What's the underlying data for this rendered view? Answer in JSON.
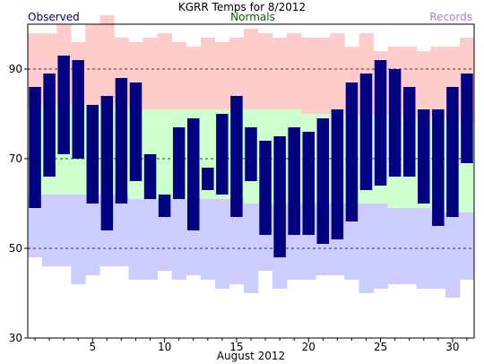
{
  "chart_data": {
    "type": "bar",
    "title": "KGRR Temps for 8/2012",
    "xlabel": "August 2012",
    "ylabel": "",
    "legend": [
      {
        "label": "Observed",
        "color": "#000080",
        "placement": "top-left"
      },
      {
        "label": "Normals",
        "color": "#006400",
        "placement": "top-center"
      },
      {
        "label": "Records",
        "color": "#b57edc",
        "placement": "top-right"
      }
    ],
    "ylim": [
      30,
      100
    ],
    "xlim": [
      0.5,
      31.5
    ],
    "yticks": [
      30,
      50,
      70,
      90
    ],
    "xticks": [
      5,
      10,
      15,
      20,
      25,
      30
    ],
    "dashed_gridlines": [
      50,
      70,
      90
    ],
    "days": [
      1,
      2,
      3,
      4,
      5,
      6,
      7,
      8,
      9,
      10,
      11,
      12,
      13,
      14,
      15,
      16,
      17,
      18,
      19,
      20,
      21,
      22,
      23,
      24,
      25,
      26,
      27,
      28,
      29,
      30,
      31
    ],
    "observed_high": [
      86,
      89,
      93,
      92,
      82,
      84,
      88,
      87,
      71,
      62,
      77,
      79,
      68,
      80,
      84,
      77,
      74,
      75,
      77,
      76,
      79,
      81,
      87,
      89,
      92,
      90,
      86,
      81,
      81,
      86,
      89
    ],
    "observed_low": [
      59,
      66,
      71,
      70,
      60,
      54,
      60,
      65,
      61,
      57,
      61,
      54,
      63,
      62,
      57,
      65,
      53,
      48,
      53,
      53,
      51,
      52,
      56,
      63,
      64,
      66,
      66,
      60,
      55,
      57,
      69
    ],
    "normal_high": [
      82,
      82,
      82,
      82,
      82,
      82,
      82,
      81,
      81,
      81,
      81,
      81,
      81,
      81,
      81,
      81,
      81,
      81,
      81,
      80,
      80,
      80,
      80,
      80,
      80,
      80,
      79,
      79,
      79,
      79,
      79
    ],
    "normal_low": [
      62,
      62,
      62,
      62,
      62,
      62,
      62,
      61,
      61,
      61,
      61,
      61,
      61,
      61,
      61,
      60,
      60,
      60,
      60,
      60,
      60,
      60,
      60,
      60,
      60,
      59,
      59,
      59,
      58,
      58,
      58
    ],
    "record_high": [
      98,
      98,
      100,
      96,
      100,
      102,
      97,
      96,
      97,
      98,
      96,
      95,
      97,
      96,
      97,
      99,
      98,
      97,
      98,
      97,
      97,
      98,
      95,
      98,
      94,
      95,
      95,
      94,
      95,
      95,
      97
    ],
    "record_low": [
      48,
      46,
      46,
      42,
      44,
      46,
      46,
      43,
      43,
      45,
      43,
      44,
      43,
      41,
      42,
      40,
      45,
      41,
      43,
      43,
      44,
      44,
      43,
      40,
      41,
      42,
      42,
      41,
      41,
      39,
      43
    ],
    "colors": {
      "observed": "#000080",
      "normal": "#ccffcc",
      "record_high_band": "#ffcccc",
      "record_low_band": "#ccccff"
    }
  }
}
